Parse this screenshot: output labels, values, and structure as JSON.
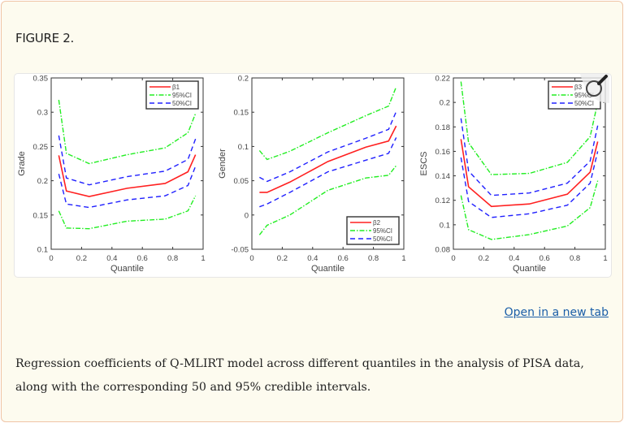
{
  "figure": {
    "title": "FIGURE 2.",
    "open_link": "Open in a new tab",
    "caption": "Regression coefficients of Q-MLIRT model across different quantiles in the analysis of PISA data, along with the corresponding 50 and 95% credible intervals.",
    "zoom_icon": "magnifier-icon"
  },
  "colors": {
    "estimate": "#ff2020",
    "ci95": "#22ee22",
    "ci50": "#2020ff"
  },
  "chart_data": [
    {
      "type": "line",
      "xlabel": "Quantile",
      "ylabel": "Grade",
      "xlim": [
        0,
        1
      ],
      "ylim": [
        0.1,
        0.35
      ],
      "xticks": [
        "0",
        "0.2",
        "0.4",
        "0.6",
        "0.8",
        "1"
      ],
      "yticks": [
        "0.1",
        "0.15",
        "0.2",
        "0.25",
        "0.3",
        "0.35"
      ],
      "legend": "top-right",
      "x": [
        0.05,
        0.1,
        0.25,
        0.5,
        0.75,
        0.9,
        0.95
      ],
      "series": [
        {
          "name": "β1",
          "style": "estimate",
          "values": [
            0.237,
            0.185,
            0.177,
            0.189,
            0.196,
            0.213,
            0.238
          ]
        },
        {
          "name": "95%CI",
          "style": "ci95",
          "values": [
            0.318,
            0.24,
            0.225,
            0.238,
            0.248,
            0.27,
            0.298
          ]
        },
        {
          "name": "50%CI",
          "style": "ci50",
          "values": [
            0.266,
            0.204,
            0.194,
            0.206,
            0.214,
            0.231,
            0.261
          ]
        },
        {
          "style": "ci50",
          "values": [
            0.21,
            0.166,
            0.161,
            0.172,
            0.178,
            0.193,
            0.221
          ]
        },
        {
          "style": "ci95",
          "values": [
            0.156,
            0.131,
            0.13,
            0.141,
            0.144,
            0.156,
            0.178
          ]
        }
      ]
    },
    {
      "type": "line",
      "xlabel": "Quantile",
      "ylabel": "Gender",
      "xlim": [
        0,
        1
      ],
      "ylim": [
        -0.05,
        0.2
      ],
      "xticks": [
        "0",
        "0.2",
        "0.4",
        "0.6",
        "0.8",
        "1"
      ],
      "yticks": [
        "-0.05",
        "0",
        "0.05",
        "0.1",
        "0.15",
        "0.2"
      ],
      "legend": "bottom-right",
      "x": [
        0.05,
        0.1,
        0.25,
        0.5,
        0.75,
        0.9,
        0.95
      ],
      "series": [
        {
          "name": "β2",
          "style": "estimate",
          "values": [
            0.033,
            0.033,
            0.048,
            0.078,
            0.099,
            0.108,
            0.13
          ]
        },
        {
          "name": "95%CI",
          "style": "ci95",
          "values": [
            0.094,
            0.081,
            0.093,
            0.12,
            0.145,
            0.159,
            0.187
          ]
        },
        {
          "name": "50%CI",
          "style": "ci50",
          "values": [
            0.055,
            0.049,
            0.063,
            0.092,
            0.112,
            0.125,
            0.151
          ]
        },
        {
          "style": "ci50",
          "values": [
            0.012,
            0.016,
            0.033,
            0.063,
            0.08,
            0.09,
            0.113
          ]
        },
        {
          "style": "ci95",
          "values": [
            -0.029,
            -0.015,
            0.0,
            0.036,
            0.054,
            0.058,
            0.072
          ]
        }
      ]
    },
    {
      "type": "line",
      "xlabel": "Quantile",
      "ylabel": "ESCS",
      "xlim": [
        0,
        1
      ],
      "ylim": [
        0.08,
        0.22
      ],
      "xticks": [
        "0",
        "0.2",
        "0.4",
        "0.6",
        "0.8",
        "1"
      ],
      "yticks": [
        "0.08",
        "0.1",
        "0.12",
        "0.14",
        "0.16",
        "0.18",
        "0.2",
        "0.22"
      ],
      "legend": "top-right",
      "x": [
        0.05,
        0.1,
        0.25,
        0.5,
        0.75,
        0.9,
        0.95
      ],
      "series": [
        {
          "name": "β3",
          "style": "estimate",
          "values": [
            0.17,
            0.131,
            0.115,
            0.117,
            0.125,
            0.143,
            0.168
          ]
        },
        {
          "name": "95%CI",
          "style": "ci95",
          "values": [
            0.217,
            0.167,
            0.141,
            0.142,
            0.151,
            0.172,
            0.2
          ]
        },
        {
          "name": "50%CI",
          "style": "ci50",
          "values": [
            0.187,
            0.144,
            0.124,
            0.126,
            0.134,
            0.152,
            0.181
          ]
        },
        {
          "style": "ci50",
          "values": [
            0.155,
            0.119,
            0.106,
            0.109,
            0.116,
            0.134,
            0.16
          ]
        },
        {
          "style": "ci95",
          "values": [
            0.124,
            0.096,
            0.088,
            0.092,
            0.099,
            0.114,
            0.136
          ]
        }
      ]
    }
  ]
}
